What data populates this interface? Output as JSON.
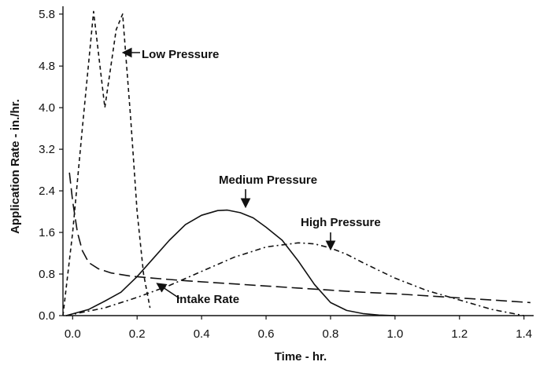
{
  "chart_data": {
    "type": "line",
    "title": "",
    "xlabel": "Time - hr.",
    "ylabel": "Application Rate - in./hr.",
    "xlim": [
      -0.03,
      1.43
    ],
    "ylim": [
      0,
      5.95
    ],
    "x_ticks": [
      "0.0",
      "0.2",
      "0.4",
      "0.6",
      "0.8",
      "1.0",
      "1.2",
      "1.4"
    ],
    "y_ticks": [
      "0.0",
      "0.8",
      "1.6",
      "2.4",
      "3.2",
      "4.0",
      "4.8",
      "5.8"
    ],
    "grid": false,
    "legend": "none",
    "series": [
      {
        "name": "Low Pressure",
        "style": "short-dash",
        "x": [
          -0.03,
          0.0,
          0.03,
          0.065,
          0.1,
          0.135,
          0.155,
          0.18,
          0.2,
          0.22,
          0.24
        ],
        "y": [
          0.0,
          1.6,
          3.6,
          5.85,
          4.0,
          5.5,
          5.8,
          3.8,
          2.0,
          0.8,
          0.15
        ]
      },
      {
        "name": "Medium Pressure",
        "style": "solid",
        "x": [
          -0.02,
          0.05,
          0.1,
          0.15,
          0.2,
          0.25,
          0.3,
          0.35,
          0.4,
          0.45,
          0.48,
          0.52,
          0.56,
          0.6,
          0.65,
          0.7,
          0.75,
          0.8,
          0.85,
          0.9,
          0.95,
          1.0
        ],
        "y": [
          0.0,
          0.12,
          0.28,
          0.45,
          0.75,
          1.1,
          1.45,
          1.75,
          1.93,
          2.02,
          2.03,
          1.98,
          1.88,
          1.7,
          1.45,
          1.05,
          0.6,
          0.25,
          0.1,
          0.04,
          0.01,
          0.0
        ]
      },
      {
        "name": "High Pressure",
        "style": "dash-dot",
        "x": [
          -0.02,
          0.1,
          0.2,
          0.3,
          0.4,
          0.5,
          0.6,
          0.7,
          0.75,
          0.8,
          0.85,
          0.9,
          1.0,
          1.1,
          1.2,
          1.3,
          1.4
        ],
        "y": [
          0.0,
          0.15,
          0.35,
          0.58,
          0.85,
          1.12,
          1.32,
          1.4,
          1.38,
          1.3,
          1.18,
          1.02,
          0.72,
          0.48,
          0.3,
          0.12,
          0.0
        ]
      },
      {
        "name": "Intake Rate",
        "style": "long-dash",
        "x": [
          -0.01,
          0.0,
          0.015,
          0.03,
          0.05,
          0.08,
          0.12,
          0.18,
          0.25,
          0.35,
          0.5,
          0.6,
          0.7,
          0.8,
          0.9,
          1.0,
          1.1,
          1.2,
          1.3,
          1.42
        ],
        "y": [
          2.75,
          2.2,
          1.6,
          1.25,
          1.02,
          0.9,
          0.82,
          0.76,
          0.72,
          0.67,
          0.61,
          0.57,
          0.53,
          0.49,
          0.45,
          0.42,
          0.38,
          0.34,
          0.3,
          0.25
        ]
      }
    ],
    "annotations": [
      {
        "text": "Low   Pressure",
        "target_series": "Low Pressure"
      },
      {
        "text": "Medium   Pressure",
        "target_series": "Medium Pressure"
      },
      {
        "text": "High   Pressure",
        "target_series": "High Pressure"
      },
      {
        "text": "Intake  Rate",
        "target_series": "Intake Rate"
      }
    ]
  },
  "colors": {
    "ink": "#111111",
    "background": "#ffffff"
  }
}
